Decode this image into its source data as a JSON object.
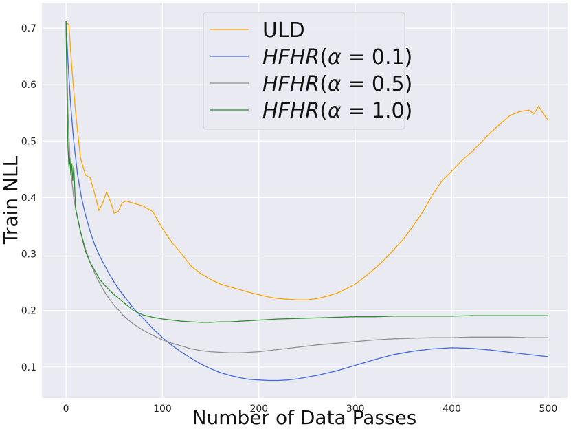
{
  "chart_data": {
    "type": "line",
    "title": "",
    "xlabel": "Number of Data Passes",
    "ylabel": "Train NLL",
    "xlim": [
      -25,
      520
    ],
    "ylim": [
      0.045,
      0.745
    ],
    "grid": true,
    "legend_position": "top-center",
    "background_color": "#EAEAF2",
    "grid_color": "#FFFFFF",
    "x_ticks": [
      0,
      100,
      200,
      300,
      400,
      500
    ],
    "x_tick_labels": [
      "0",
      "100",
      "200",
      "300",
      "400",
      "500"
    ],
    "y_ticks": [
      0.1,
      0.2,
      0.3,
      0.4,
      0.5,
      0.6,
      0.7
    ],
    "y_tick_labels": [
      "0.1",
      "0.2",
      "0.3",
      "0.4",
      "0.5",
      "0.6",
      "0.7"
    ],
    "series": [
      {
        "name": "ULD",
        "legend_plain": "ULD",
        "legend_parts": [],
        "color": "#FFA500",
        "x": [
          0,
          3,
          6,
          10,
          15,
          20,
          25,
          30,
          34,
          38,
          42,
          46,
          50,
          54,
          58,
          62,
          66,
          70,
          80,
          90,
          100,
          110,
          120,
          130,
          140,
          150,
          160,
          170,
          180,
          190,
          200,
          210,
          220,
          230,
          240,
          250,
          260,
          270,
          280,
          290,
          300,
          310,
          320,
          330,
          340,
          350,
          360,
          370,
          380,
          390,
          400,
          410,
          420,
          430,
          440,
          450,
          460,
          470,
          480,
          485,
          490,
          495,
          500
        ],
        "y": [
          0.712,
          0.705,
          0.63,
          0.55,
          0.47,
          0.44,
          0.435,
          0.405,
          0.377,
          0.39,
          0.41,
          0.393,
          0.372,
          0.375,
          0.39,
          0.394,
          0.392,
          0.39,
          0.385,
          0.375,
          0.345,
          0.32,
          0.3,
          0.278,
          0.265,
          0.255,
          0.247,
          0.242,
          0.237,
          0.232,
          0.228,
          0.224,
          0.221,
          0.22,
          0.219,
          0.219,
          0.221,
          0.225,
          0.23,
          0.238,
          0.247,
          0.26,
          0.274,
          0.29,
          0.308,
          0.327,
          0.35,
          0.375,
          0.405,
          0.43,
          0.447,
          0.465,
          0.48,
          0.497,
          0.515,
          0.53,
          0.545,
          0.552,
          0.555,
          0.548,
          0.562,
          0.548,
          0.537
        ]
      },
      {
        "name": "HFHR(α = 0.1)",
        "legend_plain": "",
        "legend_parts": [
          {
            "text": "HFHR",
            "italic": true
          },
          {
            "text": "(",
            "italic": false
          },
          {
            "text": "α",
            "italic": true
          },
          {
            "text": " = 0.1)",
            "italic": false
          }
        ],
        "color": "#4169E1",
        "x": [
          0,
          2,
          5,
          8,
          12,
          16,
          20,
          25,
          30,
          35,
          40,
          45,
          50,
          55,
          60,
          70,
          80,
          90,
          100,
          110,
          120,
          130,
          140,
          150,
          160,
          170,
          180,
          190,
          200,
          210,
          220,
          230,
          240,
          250,
          260,
          270,
          280,
          290,
          300,
          320,
          340,
          360,
          380,
          400,
          420,
          440,
          460,
          480,
          500
        ],
        "y": [
          0.712,
          0.64,
          0.56,
          0.5,
          0.44,
          0.4,
          0.37,
          0.34,
          0.315,
          0.296,
          0.28,
          0.264,
          0.25,
          0.237,
          0.226,
          0.204,
          0.186,
          0.168,
          0.152,
          0.138,
          0.126,
          0.115,
          0.105,
          0.097,
          0.09,
          0.085,
          0.081,
          0.078,
          0.077,
          0.076,
          0.076,
          0.077,
          0.079,
          0.082,
          0.085,
          0.089,
          0.093,
          0.098,
          0.103,
          0.113,
          0.122,
          0.128,
          0.132,
          0.134,
          0.133,
          0.13,
          0.126,
          0.122,
          0.118
        ]
      },
      {
        "name": "HFHR(α = 0.5)",
        "legend_plain": "",
        "legend_parts": [
          {
            "text": "HFHR",
            "italic": true
          },
          {
            "text": "(",
            "italic": false
          },
          {
            "text": "α",
            "italic": true
          },
          {
            "text": " = 0.5)",
            "italic": false
          }
        ],
        "color": "#909090",
        "x": [
          0,
          2,
          4,
          6,
          8,
          10,
          15,
          20,
          25,
          30,
          35,
          40,
          45,
          50,
          55,
          60,
          70,
          80,
          90,
          100,
          110,
          120,
          130,
          140,
          150,
          160,
          170,
          180,
          190,
          200,
          220,
          240,
          260,
          280,
          300,
          320,
          340,
          360,
          380,
          400,
          420,
          440,
          460,
          480,
          500
        ],
        "y": [
          0.712,
          0.55,
          0.47,
          0.43,
          0.4,
          0.38,
          0.34,
          0.31,
          0.285,
          0.265,
          0.248,
          0.233,
          0.22,
          0.209,
          0.2,
          0.19,
          0.176,
          0.165,
          0.156,
          0.148,
          0.142,
          0.137,
          0.132,
          0.129,
          0.127,
          0.126,
          0.125,
          0.125,
          0.126,
          0.127,
          0.131,
          0.135,
          0.139,
          0.142,
          0.145,
          0.148,
          0.15,
          0.151,
          0.152,
          0.152,
          0.153,
          0.153,
          0.153,
          0.152,
          0.152
        ]
      },
      {
        "name": "HFHR(α = 1.0)",
        "legend_plain": "",
        "legend_parts": [
          {
            "text": "HFHR",
            "italic": true
          },
          {
            "text": "(",
            "italic": false
          },
          {
            "text": "α",
            "italic": true
          },
          {
            "text": " = 1.0)",
            "italic": false
          }
        ],
        "color": "#2E8B2E",
        "x": [
          0,
          1,
          2,
          3,
          4,
          5,
          6,
          7,
          8,
          10,
          15,
          20,
          25,
          30,
          35,
          40,
          45,
          50,
          60,
          70,
          80,
          90,
          100,
          110,
          120,
          130,
          140,
          150,
          160,
          170,
          180,
          190,
          200,
          220,
          240,
          260,
          280,
          300,
          320,
          340,
          360,
          380,
          400,
          420,
          440,
          460,
          480,
          500
        ],
        "y": [
          0.712,
          0.58,
          0.49,
          0.455,
          0.47,
          0.44,
          0.46,
          0.43,
          0.455,
          0.38,
          0.34,
          0.305,
          0.285,
          0.27,
          0.255,
          0.245,
          0.236,
          0.228,
          0.214,
          0.2,
          0.192,
          0.188,
          0.185,
          0.183,
          0.181,
          0.18,
          0.179,
          0.179,
          0.18,
          0.18,
          0.181,
          0.182,
          0.183,
          0.185,
          0.186,
          0.187,
          0.188,
          0.189,
          0.189,
          0.19,
          0.19,
          0.19,
          0.19,
          0.191,
          0.191,
          0.191,
          0.191,
          0.191
        ]
      }
    ]
  }
}
